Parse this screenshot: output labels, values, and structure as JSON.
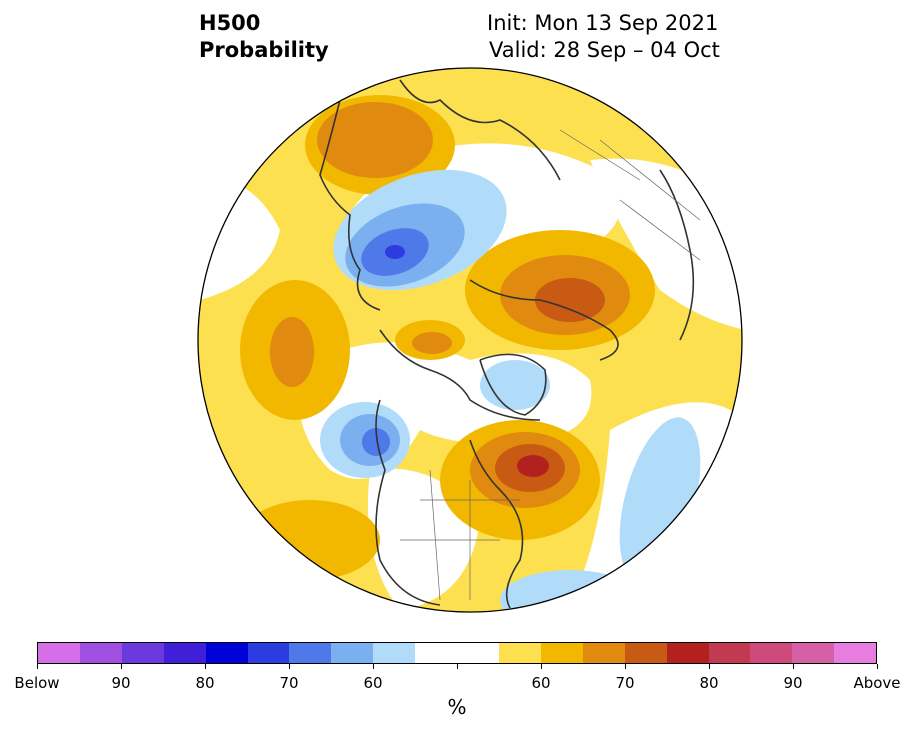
{
  "header": {
    "variable": "H500",
    "product": "Probability",
    "init": "Init: Mon 13 Sep 2021",
    "valid": "Valid: 28 Sep – 04 Oct"
  },
  "map": {
    "projection": "north-polar-stereographic",
    "border_color": "#000000",
    "coastline_color": "#333333"
  },
  "colorbar": {
    "unit": "%",
    "colors": [
      "#d66ee8",
      "#a050e0",
      "#6a3adf",
      "#3f1fd8",
      "#0000d8",
      "#2d3ce0",
      "#4f78e8",
      "#7bb0f0",
      "#b0dcfa",
      "#ffffff",
      "#ffffff",
      "#fde050",
      "#f2b800",
      "#e08b10",
      "#c85a14",
      "#b32020",
      "#c23a52",
      "#cd4a7a",
      "#d660a8",
      "#e87de0"
    ],
    "tick_labels": [
      "Below",
      "90",
      "80",
      "70",
      "60",
      "",
      "60",
      "70",
      "80",
      "90",
      "Above"
    ]
  }
}
